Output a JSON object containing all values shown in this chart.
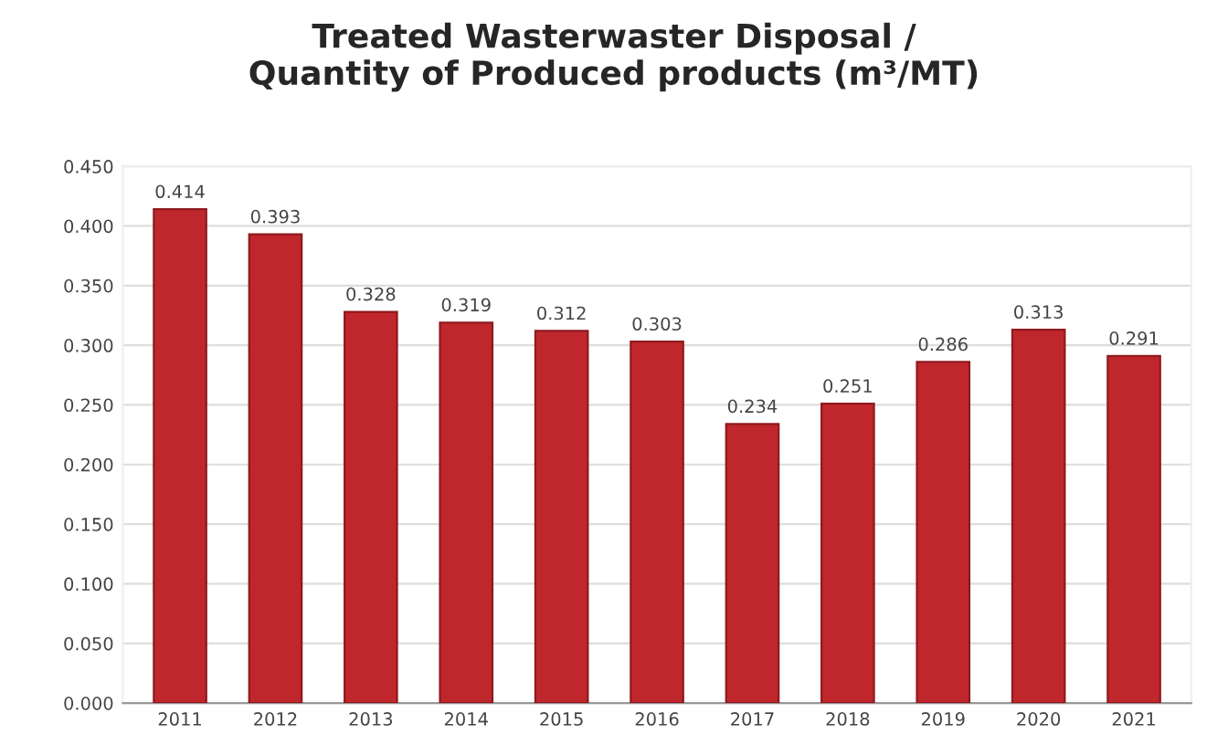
{
  "chart_data": {
    "type": "bar",
    "title": "Treated Wasterwaster Disposal /\nQuantity of Produced products (m³/MT)",
    "categories": [
      "2011",
      "2012",
      "2013",
      "2014",
      "2015",
      "2016",
      "2017",
      "2018",
      "2019",
      "2020",
      "2021"
    ],
    "values": [
      0.414,
      0.393,
      0.328,
      0.319,
      0.312,
      0.303,
      0.234,
      0.251,
      0.286,
      0.313,
      0.291
    ],
    "color": "#c0272d",
    "ylim": [
      0,
      0.45
    ],
    "yticks": [
      {
        "value": 0,
        "label": "0.000"
      },
      {
        "value": 0.05,
        "label": "0.050"
      },
      {
        "value": 0.1,
        "label": "0.100"
      },
      {
        "value": 0.15,
        "label": "0.150"
      },
      {
        "value": 0.2,
        "label": "0.200"
      },
      {
        "value": 0.25,
        "label": "0.250"
      },
      {
        "value": 0.3,
        "label": "0.300"
      },
      {
        "value": 0.35,
        "label": "0.350"
      },
      {
        "value": 0.4,
        "label": "0.400"
      },
      {
        "value": 0.45,
        "label": "0.450"
      }
    ],
    "grid": "y",
    "data_labels": true,
    "legend": false
  }
}
